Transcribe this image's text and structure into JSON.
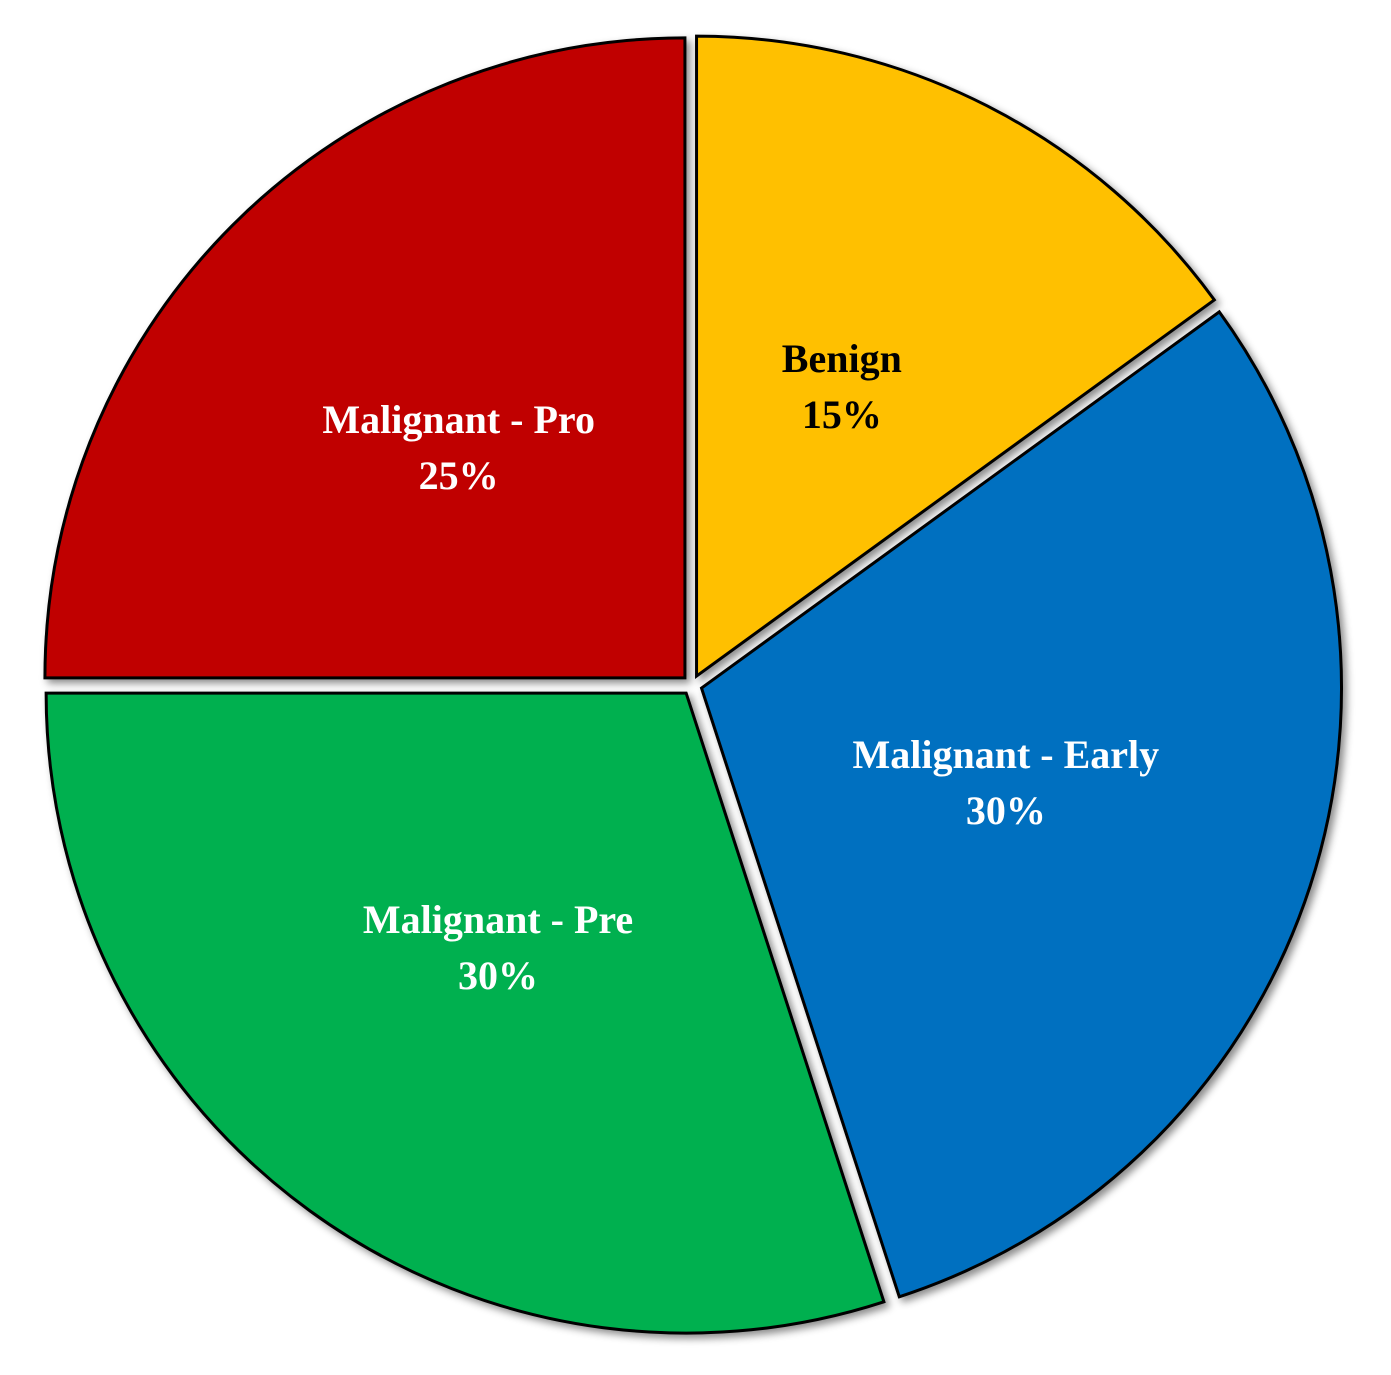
{
  "chart_data": {
    "type": "pie",
    "categories": [
      "Benign",
      "Malignant - Early",
      "Malignant - Pre",
      "Malignant - Pro"
    ],
    "values": [
      15,
      30,
      30,
      25
    ],
    "value_labels": [
      "15%",
      "30%",
      "30%",
      "25%"
    ],
    "colors": [
      "#FFC000",
      "#0070C0",
      "#00B050",
      "#C00000"
    ],
    "label_colors": [
      "#000000",
      "#FFFFFF",
      "#FFFFFF",
      "#FFFFFF"
    ]
  }
}
